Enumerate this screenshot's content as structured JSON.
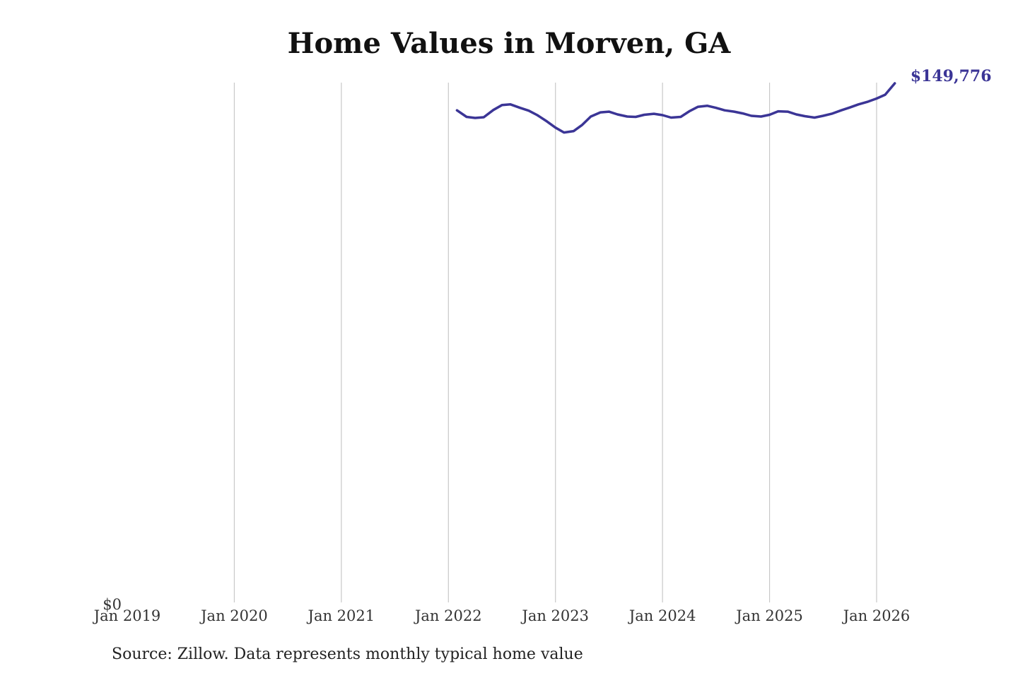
{
  "chart_data": {
    "type": "line",
    "title": "Home Values in Morven, GA",
    "source": "Source: Zillow. Data represents monthly typical home value",
    "xlabel": "",
    "ylabel": "",
    "x_ticks": [
      {
        "label": "Jan 2019",
        "value": 2019.0
      },
      {
        "label": "Jan 2020",
        "value": 2020.0
      },
      {
        "label": "Jan 2021",
        "value": 2021.0
      },
      {
        "label": "Jan 2022",
        "value": 2022.0
      },
      {
        "label": "Jan 2023",
        "value": 2023.0
      },
      {
        "label": "Jan 2024",
        "value": 2024.0
      },
      {
        "label": "Jan 2025",
        "value": 2025.0
      },
      {
        "label": "Jan 2026",
        "value": 2026.0
      }
    ],
    "y_tick_label": "$0",
    "xlim": [
      2019.0,
      2026.5
    ],
    "ylim": [
      0,
      149776
    ],
    "grid": "vertical",
    "line_color": "#3b3596",
    "end_label": "$149,776",
    "series": [
      {
        "x": [
          2022.08,
          2022.17,
          2022.25,
          2022.33,
          2022.42,
          2022.5,
          2022.58,
          2022.67,
          2022.75,
          2022.83,
          2022.92,
          2023.0,
          2023.08,
          2023.17,
          2023.25,
          2023.33,
          2023.42,
          2023.5,
          2023.58,
          2023.67,
          2023.75,
          2023.83,
          2023.92,
          2024.0,
          2024.08,
          2024.17,
          2024.25,
          2024.33,
          2024.42,
          2024.5,
          2024.58,
          2024.67,
          2024.75,
          2024.83,
          2024.92,
          2025.0,
          2025.08,
          2025.17,
          2025.25,
          2025.33,
          2025.42,
          2025.5,
          2025.58,
          2025.67,
          2025.75,
          2025.83,
          2025.92,
          2026.0,
          2026.08,
          2026.17
        ],
        "y": [
          142000,
          140100,
          139800,
          140000,
          142100,
          143500,
          143700,
          142700,
          141900,
          140600,
          138800,
          137000,
          135600,
          136000,
          137800,
          140200,
          141400,
          141600,
          140800,
          140200,
          140100,
          140700,
          141000,
          140600,
          139900,
          140100,
          141700,
          143000,
          143300,
          142700,
          142000,
          141600,
          141100,
          140400,
          140200,
          140700,
          141700,
          141600,
          140800,
          140300,
          139900,
          140400,
          141000,
          142000,
          142800,
          143700,
          144500,
          145400,
          146500,
          149776
        ]
      }
    ]
  }
}
